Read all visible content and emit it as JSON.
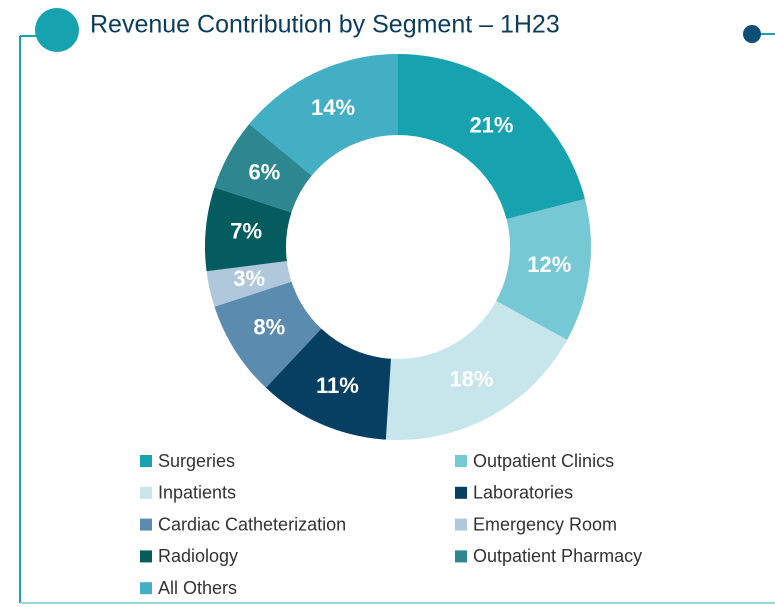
{
  "chart_data": {
    "type": "donut",
    "title": "Revenue Contribution by Segment – 1H23",
    "categories": [
      "Surgeries",
      "Outpatient Clinics",
      "Inpatients",
      "Laboratories",
      "Cardiac Catheterization",
      "Emergency Room",
      "Radiology",
      "Outpatient Pharmacy",
      "All Others"
    ],
    "values": [
      21,
      12,
      18,
      11,
      8,
      3,
      7,
      6,
      14
    ],
    "value_labels": [
      "21%",
      "12%",
      "18%",
      "11%",
      "8%",
      "3%",
      "7%",
      "6%",
      "14%"
    ],
    "colors": [
      "#17a2b0",
      "#76c9d4",
      "#c7e6ec",
      "#073f63",
      "#5b8bae",
      "#b0c8db",
      "#055c5e",
      "#2e8790",
      "#42afc4"
    ],
    "legend": "bottom"
  }
}
